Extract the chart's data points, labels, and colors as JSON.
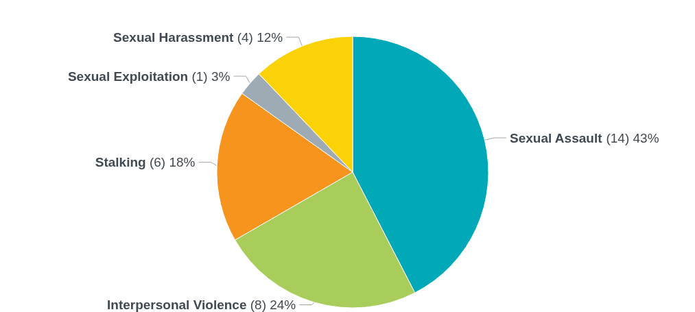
{
  "chart_data": {
    "type": "pie",
    "categories": [
      "Sexual Assault",
      "Interpersonal Violence",
      "Stalking",
      "Sexual Exploitation",
      "Sexual Harassment"
    ],
    "values": [
      14,
      8,
      6,
      1,
      4
    ],
    "value_labels": [
      "(14) 43%",
      "(8) 24%",
      "(6) 18%",
      "(1) 3%",
      "(4) 12%"
    ],
    "colors": [
      "#00a8b8",
      "#a8cd5a",
      "#f7941d",
      "#9eabb4",
      "#fbd207"
    ]
  }
}
